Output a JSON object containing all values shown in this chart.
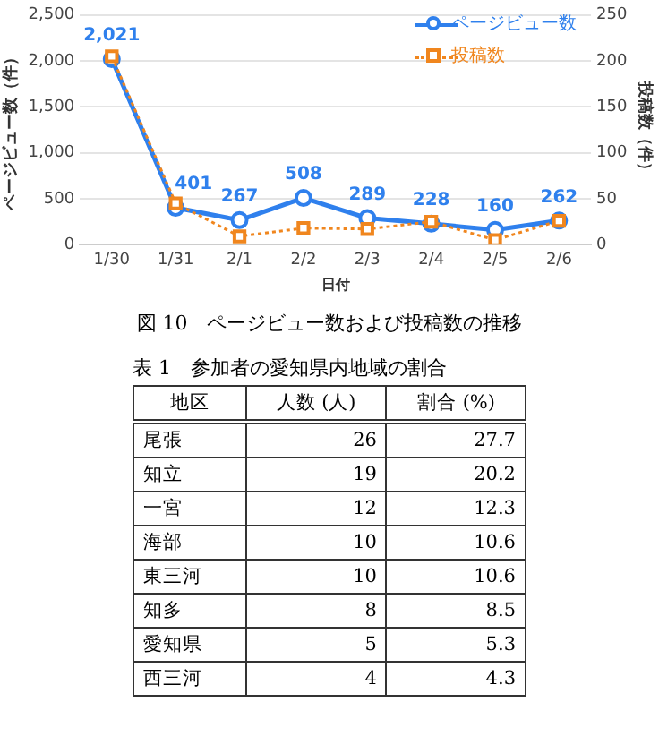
{
  "chart_data": [
    {
      "type": "line",
      "xlabel": "日付",
      "ylabel": "ページビュー数（件）",
      "y2label": "投稿数（件）",
      "categories": [
        "1/30",
        "1/31",
        "2/1",
        "2/2",
        "2/3",
        "2/4",
        "2/5",
        "2/6"
      ],
      "series": [
        {
          "name": "ページビュー数",
          "color": "#2f80ed",
          "values": [
            2021,
            401,
            267,
            508,
            289,
            228,
            160,
            262
          ],
          "value_labels": [
            "2,021",
            "401",
            "267",
            "508",
            "289",
            "228",
            "160",
            "262"
          ],
          "marker": "circle",
          "line_style": "solid"
        },
        {
          "name": "投稿数",
          "color": "#f0861e",
          "axis": "y2",
          "values": [
            205,
            45,
            9,
            18,
            17,
            25,
            5,
            26
          ],
          "marker": "square",
          "line_style": "dotted"
        }
      ],
      "ylim": [
        0,
        2500
      ],
      "yticks": [
        0,
        {
          "value": 500,
          "label": "500"
        },
        {
          "value": 1000,
          "label": "1,000"
        },
        {
          "value": 1500,
          "label": "1,500"
        },
        {
          "value": 2000,
          "label": "2,000"
        },
        {
          "value": 2500,
          "label": "2,500"
        }
      ],
      "y2lim": [
        0,
        250
      ],
      "y2ticks": [
        0,
        50,
        100,
        150,
        200,
        250
      ],
      "grid": "y",
      "legend": "top right",
      "annotations": [
        "図 10　ページビュー数および投稿数の推移"
      ]
    },
    {
      "type": "other",
      "title": "表 1　参加者の愛知県内地域の割合",
      "xlabel": "地区",
      "categories": [
        "尾張",
        "知立",
        "一宮",
        "海部",
        "東三河",
        "知多",
        "愛知県",
        "西三河"
      ],
      "series": [
        {
          "name": "人数 (人)",
          "values": [
            26,
            19,
            12,
            10,
            10,
            8,
            5,
            4
          ]
        },
        {
          "name": "割合 (%)",
          "values": [
            27.7,
            20.2,
            12.3,
            10.6,
            10.6,
            8.5,
            5.3,
            4.3
          ]
        }
      ],
      "data_labels": true
    }
  ]
}
